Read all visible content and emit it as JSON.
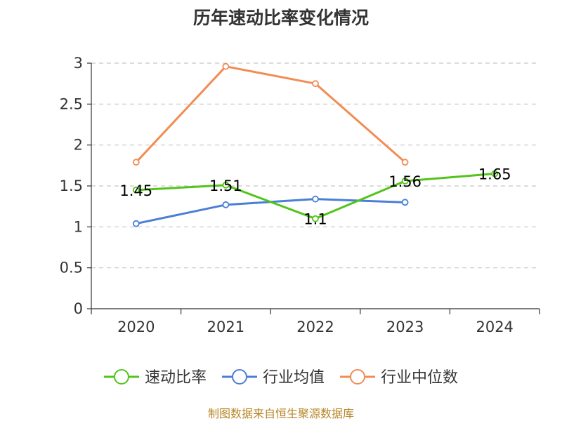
{
  "chart_data": {
    "type": "line",
    "title": "历年速动比率变化情况",
    "categories": [
      "2020",
      "2021",
      "2022",
      "2023",
      "2024"
    ],
    "ylim": [
      0,
      3
    ],
    "yticks": [
      0,
      0.5,
      1,
      1.5,
      2,
      2.5,
      3
    ],
    "ytick_labels": [
      "0",
      "0.5",
      "1",
      "1.5",
      "2",
      "2.5",
      "3"
    ],
    "grid": true,
    "legend_position": "bottom-center",
    "series": [
      {
        "name": "速动比率",
        "color": "#52c41a",
        "values": [
          1.45,
          1.51,
          1.1,
          1.56,
          1.65
        ],
        "labels": [
          "1.45",
          "1.51",
          "1.1",
          "1.56",
          "1.65"
        ]
      },
      {
        "name": "行业均值",
        "color": "#4a7fd6",
        "values": [
          1.04,
          1.27,
          1.34,
          1.3,
          null
        ]
      },
      {
        "name": "行业中位数",
        "color": "#f28c55",
        "values": [
          1.79,
          2.96,
          2.75,
          1.79,
          null
        ]
      }
    ]
  },
  "source_note": "制图数据来自恒生聚源数据库"
}
